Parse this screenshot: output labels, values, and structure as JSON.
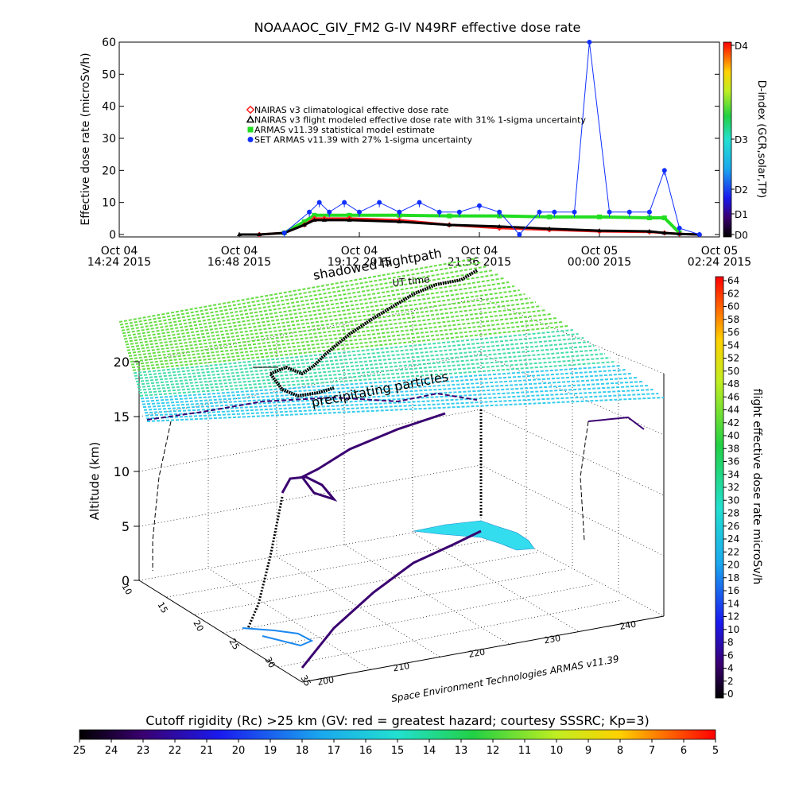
{
  "top_chart": {
    "title": "NOAAAOC_GIV_FM2  G-IV    N49RF   effective dose rate",
    "ylabel": "Effective dose rate (microSv/h)",
    "y_ticks": [
      "0",
      "10",
      "20",
      "30",
      "40",
      "50",
      "60"
    ],
    "x_ticks": [
      {
        "line1": "Oct 04",
        "line2": "14:24 2015"
      },
      {
        "line1": "Oct 04",
        "line2": "16:48 2015"
      },
      {
        "line1": "Oct 04",
        "line2": "19:12 2015"
      },
      {
        "line1": "Oct 04",
        "line2": "21:36 2015"
      },
      {
        "line1": "Oct 05",
        "line2": "00:00 2015"
      },
      {
        "line1": "Oct 05",
        "line2": "02:24 2015"
      }
    ],
    "legend": [
      {
        "label": "NAIRAS v3 climatological effective dose rate",
        "color": "#ff2020",
        "marker": "diamond"
      },
      {
        "label": "NAIRAS v3 flight modeled effective dose rate with 31% 1-sigma uncertainty",
        "color": "#000000",
        "marker": "triangle"
      },
      {
        "label": "ARMAS v11.39 statistical model estimate",
        "color": "#22dd22",
        "marker": "x"
      },
      {
        "label": "SET ARMAS v11.39 with 27% 1-sigma uncertainty",
        "color": "#1030ff",
        "marker": "dot"
      }
    ],
    "dindex": {
      "label": "D-index (GCR,solar,TP)",
      "ticks": [
        "D4",
        "D3",
        "D2",
        "D1",
        "D0"
      ]
    }
  },
  "chart_data": [
    {
      "type": "line",
      "title": "NOAAAOC_GIV_FM2  G-IV    N49RF   effective dose rate",
      "xlabel": "",
      "ylabel": "Effective dose rate (microSv/h)",
      "ylim": [
        0,
        60
      ],
      "xlim_hours": [
        14.4,
        26.4
      ],
      "grid": false,
      "legend_position": "upper-left inside",
      "series": [
        {
          "name": "NAIRAS v3 climatological effective dose rate",
          "x": [
            17.2,
            17.7,
            18.1,
            18.3,
            18.5,
            19.0,
            20.0,
            21.0,
            22.0,
            23.0,
            24.0,
            25.0,
            25.3,
            25.6,
            26.0
          ],
          "y": [
            0.0,
            0.5,
            3.0,
            5.0,
            5.0,
            5.0,
            4.5,
            3.0,
            2.0,
            1.5,
            1.0,
            0.8,
            0.5,
            0.2,
            0.0
          ]
        },
        {
          "name": "NAIRAS v3 flight modeled effective dose rate with 31% 1-sigma uncertainty",
          "x": [
            16.8,
            17.2,
            17.7,
            18.1,
            18.3,
            18.5,
            19.0,
            20.0,
            21.0,
            22.0,
            23.0,
            24.0,
            25.0,
            25.3,
            25.6,
            26.0
          ],
          "y": [
            0.0,
            0.0,
            0.5,
            3.0,
            4.5,
            4.5,
            4.5,
            4.0,
            3.0,
            2.5,
            1.8,
            1.2,
            1.0,
            0.5,
            0.2,
            0.0
          ]
        },
        {
          "name": "ARMAS v11.39 statistical model estimate",
          "x": [
            17.7,
            18.1,
            18.3,
            19.0,
            20.0,
            21.0,
            22.0,
            23.0,
            24.0,
            25.0,
            25.3,
            25.6
          ],
          "y": [
            0.5,
            4.0,
            6.0,
            6.0,
            6.0,
            5.8,
            5.8,
            5.5,
            5.5,
            5.2,
            5.2,
            0.5
          ]
        },
        {
          "name": "SET ARMAS v11.39 with 27% 1-sigma uncertainty",
          "x": [
            17.7,
            18.2,
            18.4,
            18.6,
            18.9,
            19.2,
            19.6,
            20.0,
            20.4,
            20.8,
            21.2,
            21.6,
            22.0,
            22.4,
            22.8,
            23.1,
            23.5,
            23.8,
            24.2,
            24.6,
            25.0,
            25.3,
            25.6,
            26.0
          ],
          "y": [
            0.5,
            7.0,
            10.0,
            7.0,
            10.0,
            7.0,
            10.0,
            7.0,
            10.0,
            7.0,
            7.0,
            9.0,
            7.0,
            0.0,
            7.0,
            7.0,
            7.0,
            60.0,
            7.0,
            7.0,
            7.0,
            20.0,
            2.0,
            0.0
          ]
        }
      ]
    },
    {
      "type": "scatter",
      "title": "",
      "xlabel": "",
      "ylabel": "Altitude (km)",
      "zlim": [
        0,
        20
      ],
      "z_ticks": [
        "0",
        "5",
        "10",
        "15",
        "20"
      ],
      "lat_ticks": [
        "10",
        "15",
        "20",
        "25",
        "30",
        "35"
      ],
      "lon_ticks": [
        "200",
        "210",
        "220",
        "230",
        "240"
      ],
      "annotations": [
        "shadowed flightpath",
        "UT time",
        "precipitating particles"
      ],
      "credit": "Space Environment Technologies ARMAS v11.39",
      "grid": true
    }
  ],
  "right_colorbar": {
    "label": "flight effective dose rate microSv/h",
    "ticks": [
      "0",
      "2",
      "4",
      "6",
      "8",
      "10",
      "12",
      "14",
      "16",
      "18",
      "20",
      "22",
      "24",
      "26",
      "28",
      "30",
      "32",
      "34",
      "36",
      "38",
      "40",
      "42",
      "44",
      "46",
      "48",
      "50",
      "52",
      "54",
      "56",
      "58",
      "60",
      "62",
      "64"
    ]
  },
  "bottom_colorbar": {
    "label": "Cutoff rigidity (Rc) >25 km (GV: red = greatest hazard; courtesy SSSRC; Kp=3)",
    "ticks": [
      "25",
      "24",
      "23",
      "22",
      "21",
      "20",
      "19",
      "18",
      "17",
      "16",
      "15",
      "14",
      "13",
      "12",
      "11",
      "10",
      "9",
      "8",
      "7",
      "6",
      "5"
    ]
  }
}
